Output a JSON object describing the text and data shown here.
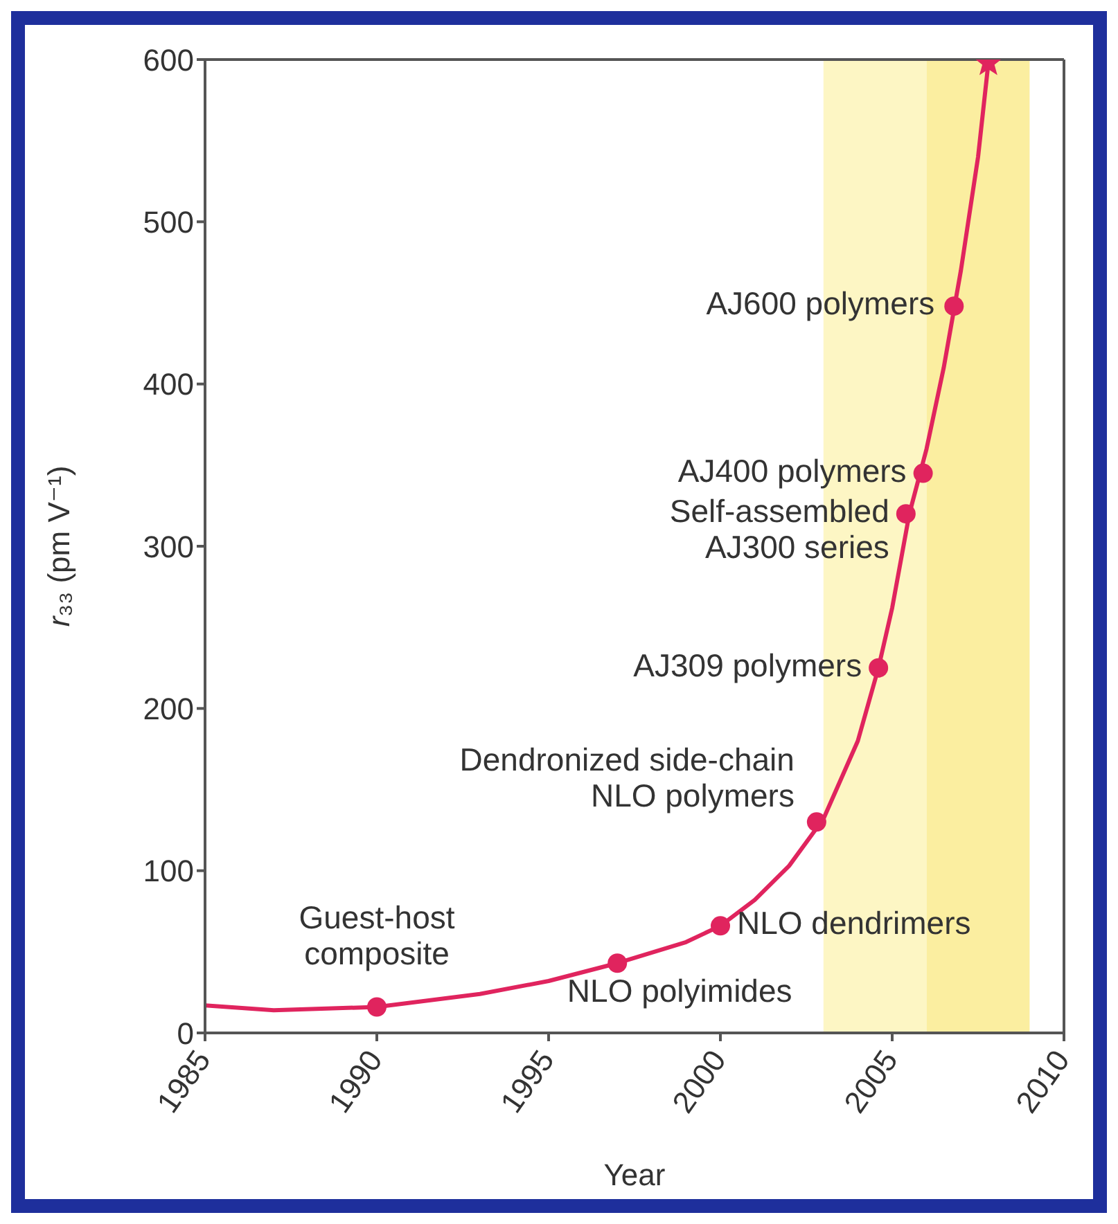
{
  "chart_data": {
    "type": "line",
    "xlabel": "Year",
    "ylabel": "r₃₃ (pm V⁻¹)",
    "xlim": [
      1985,
      2010
    ],
    "xticks": [
      1985,
      1990,
      1995,
      2000,
      2005,
      2010
    ],
    "ylim": [
      0,
      600
    ],
    "yticks": [
      0,
      100,
      200,
      300,
      400,
      500,
      600
    ],
    "grid": false,
    "series": [
      {
        "type": "line",
        "color": "#e0245e",
        "marker": "none",
        "x": [
          1985,
          1987,
          1990,
          1993,
          1995,
          1997,
          1999,
          2000,
          2001,
          2002,
          2003,
          2004,
          2004.6,
          2005,
          2005.5,
          2006,
          2006.5,
          2007,
          2007.5,
          2007.8
        ],
        "values": [
          17,
          14,
          16,
          24,
          32,
          43,
          56,
          66,
          82,
          103,
          132,
          180,
          225,
          262,
          320,
          360,
          410,
          470,
          540,
          598
        ]
      },
      {
        "type": "scatter",
        "color": "#e0245e",
        "marker": "circle",
        "x": [
          1990,
          1997,
          2000,
          2002.8,
          2004.6,
          2005.4,
          2005.9,
          2006.8
        ],
        "values": [
          16,
          43,
          66,
          130,
          225,
          320,
          345,
          448
        ]
      },
      {
        "type": "scatter",
        "color": "#e0245e",
        "marker": "star",
        "x": [
          2007.8
        ],
        "values": [
          598
        ]
      }
    ],
    "bands": [
      {
        "axis": "x",
        "from": 2003,
        "to": 2006,
        "color": "#fdf6c4"
      },
      {
        "axis": "x",
        "from": 2006,
        "to": 2009,
        "color": "#fbeea0"
      }
    ],
    "annotations": [
      {
        "text": "Guest-host\ncomposite",
        "x": 1990,
        "y": 16
      },
      {
        "text": "NLO polyimides",
        "x": 1997,
        "y": 43
      },
      {
        "text": "NLO dendrimers",
        "x": 2000,
        "y": 66
      },
      {
        "text": "Dendronized side-chain\nNLO polymers",
        "x": 2002.8,
        "y": 130
      },
      {
        "text": "AJ309 polymers",
        "x": 2004.6,
        "y": 225
      },
      {
        "text": "Self-assembled\nAJ300 series",
        "x": 2005.4,
        "y": 320
      },
      {
        "text": "AJ400 polymers",
        "x": 2005.9,
        "y": 345
      },
      {
        "text": "AJ600 polymers",
        "x": 2006.8,
        "y": 448
      }
    ]
  }
}
